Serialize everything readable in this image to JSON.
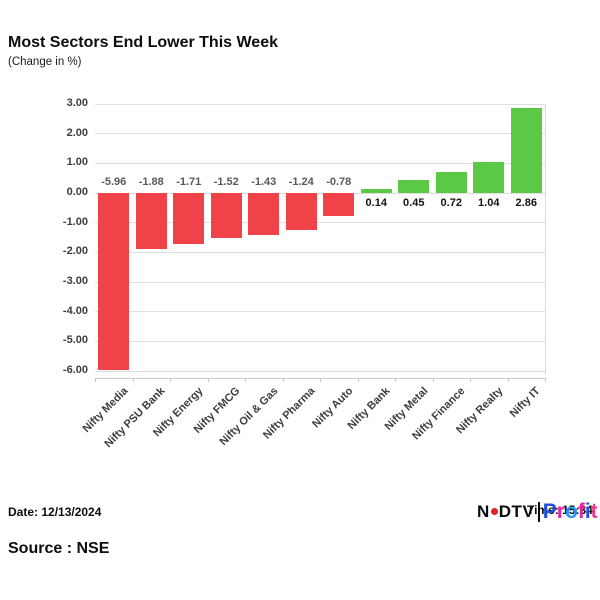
{
  "header": {
    "title": "Most Sectors End Lower This Week",
    "subtitle": "(Change in %)"
  },
  "chart_data": {
    "type": "bar",
    "categories": [
      "Nifty Media",
      "Nifty PSU Bank",
      "Nifty Energy",
      "Nifty FMCG",
      "Nifty Oil & Gas",
      "Nifty Pharma",
      "Nifty Auto",
      "Nifty Bank",
      "Nifty Metal",
      "Nifty Finance",
      "Nifty Realty",
      "Nifty IT"
    ],
    "values": [
      -5.96,
      -1.88,
      -1.71,
      -1.52,
      -1.43,
      -1.24,
      -0.78,
      0.14,
      0.45,
      0.72,
      1.04,
      2.86
    ],
    "title": "Most Sectors End Lower This Week",
    "subtitle": "(Change in %)",
    "xlabel": "",
    "ylabel": "",
    "ylim": [
      -6,
      3
    ],
    "ytick_step": 1,
    "ytick_labels": [
      "3.00",
      "2.00",
      "1.00",
      "0.00",
      "-1.00",
      "-2.00",
      "-3.00",
      "-4.00",
      "-5.00",
      "-6.00"
    ],
    "grid": true,
    "legend": false,
    "value_labels": true,
    "colors": {
      "positive_bar": "#5cc946",
      "negative_bar": "#ef4349",
      "negative_value_label": "#595959",
      "positive_value_label": "#141414",
      "gridline": "#dedede",
      "axis_text": "#3d3d3d"
    }
  },
  "footer": {
    "date": "Date: 12/13/2024",
    "time": "Time: 15:34",
    "source": "Source : NSE"
  },
  "logo": {
    "ndtv": "NDTV",
    "profit": "Profit",
    "profit_letter_colors": [
      "#1d4fd7",
      "#e8259d",
      "#2196f3",
      "#e8259d",
      "#1d4fd7",
      "#f0368b"
    ],
    "dot_color": "#e02127"
  }
}
